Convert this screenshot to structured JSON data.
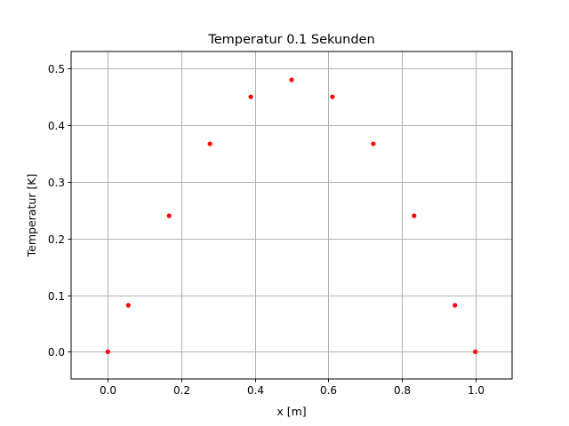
{
  "chart_data": {
    "type": "scatter",
    "title": "Temperatur 0.1 Sekunden",
    "xlabel": "x [m]",
    "ylabel": "Temperatur [K]",
    "xlim": [
      -0.1,
      1.1
    ],
    "ylim": [
      -0.048,
      0.53
    ],
    "xticks": [
      0.0,
      0.2,
      0.4,
      0.6,
      0.8,
      1.0
    ],
    "xtick_labels": [
      "0.0",
      "0.2",
      "0.4",
      "0.6",
      "0.8",
      "1.0"
    ],
    "yticks": [
      0.0,
      0.1,
      0.2,
      0.3,
      0.4,
      0.5
    ],
    "ytick_labels": [
      "0.0",
      "0.1",
      "0.2",
      "0.3",
      "0.4",
      "0.5"
    ],
    "grid": true,
    "series": [
      {
        "color": "#ff0000",
        "marker": "dot",
        "x": [
          0.0,
          0.0556,
          0.1667,
          0.2778,
          0.3889,
          0.5,
          0.6111,
          0.7222,
          0.8333,
          0.9444,
          1.0
        ],
        "y": [
          0.0,
          0.082,
          0.24,
          0.367,
          0.45,
          0.48,
          0.45,
          0.367,
          0.24,
          0.082,
          0.0
        ]
      }
    ]
  }
}
